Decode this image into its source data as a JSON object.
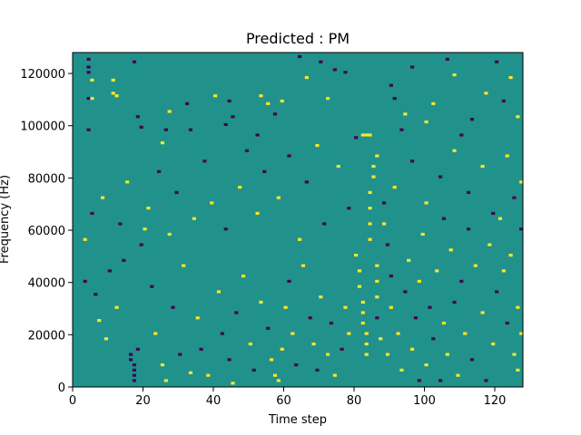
{
  "chart_data": {
    "type": "heatmap",
    "title": "Predicted : PM",
    "xlabel": "Time step",
    "ylabel": "Frequency (Hz)",
    "xlim": [
      0,
      128
    ],
    "ylim": [
      0,
      128000
    ],
    "xticks": [
      0,
      20,
      40,
      60,
      80,
      100,
      120
    ],
    "yticks": [
      0,
      20000,
      40000,
      60000,
      80000,
      100000,
      120000
    ],
    "xtick_labels": [
      "0",
      "20",
      "40",
      "60",
      "80",
      "100",
      "120"
    ],
    "ytick_labels": [
      "0",
      "20000",
      "40000",
      "60000",
      "80000",
      "100000",
      "120000"
    ],
    "grid": false,
    "n_time": 128,
    "n_freq": 128,
    "levels": [
      -1,
      0,
      1
    ],
    "colors": {
      "low": "#440154",
      "mid": "#21918c",
      "high": "#fde725"
    },
    "cells": [
      [
        4,
        98,
        -1
      ],
      [
        4,
        110,
        -1
      ],
      [
        4,
        120,
        -1
      ],
      [
        4,
        122,
        -1
      ],
      [
        4,
        125,
        -1
      ],
      [
        5,
        110,
        1
      ],
      [
        5,
        117,
        1
      ],
      [
        11,
        112,
        1
      ],
      [
        11,
        117,
        1
      ],
      [
        12,
        111,
        1
      ],
      [
        17,
        124,
        -1
      ],
      [
        18,
        103,
        -1
      ],
      [
        19,
        99,
        -1
      ],
      [
        25,
        93,
        1
      ],
      [
        26,
        98,
        -1
      ],
      [
        27,
        105,
        1
      ],
      [
        32,
        108,
        -1
      ],
      [
        33,
        98,
        -1
      ],
      [
        40,
        111,
        1
      ],
      [
        43,
        100,
        -1
      ],
      [
        44,
        109,
        -1
      ],
      [
        45,
        103,
        -1
      ],
      [
        52,
        96,
        -1
      ],
      [
        53,
        111,
        1
      ],
      [
        55,
        108,
        1
      ],
      [
        57,
        104,
        -1
      ],
      [
        59,
        109,
        1
      ],
      [
        64,
        126,
        -1
      ],
      [
        66,
        118,
        1
      ],
      [
        70,
        124,
        -1
      ],
      [
        72,
        110,
        1
      ],
      [
        74,
        121,
        -1
      ],
      [
        77,
        120,
        -1
      ],
      [
        80,
        95,
        -1
      ],
      [
        82,
        96,
        1
      ],
      [
        83,
        96,
        1
      ],
      [
        84,
        96,
        1
      ],
      [
        90,
        115,
        -1
      ],
      [
        91,
        110,
        -1
      ],
      [
        93,
        98,
        -1
      ],
      [
        94,
        104,
        1
      ],
      [
        96,
        122,
        -1
      ],
      [
        100,
        101,
        1
      ],
      [
        102,
        108,
        1
      ],
      [
        106,
        125,
        -1
      ],
      [
        108,
        119,
        1
      ],
      [
        110,
        96,
        -1
      ],
      [
        113,
        102,
        -1
      ],
      [
        117,
        112,
        1
      ],
      [
        120,
        124,
        -1
      ],
      [
        122,
        109,
        -1
      ],
      [
        124,
        118,
        1
      ],
      [
        126,
        103,
        1
      ],
      [
        3,
        40,
        -1
      ],
      [
        6,
        35,
        -1
      ],
      [
        7,
        25,
        1
      ],
      [
        9,
        18,
        1
      ],
      [
        10,
        44,
        -1
      ],
      [
        12,
        30,
        1
      ],
      [
        14,
        48,
        -1
      ],
      [
        16,
        12,
        -1
      ],
      [
        16,
        10,
        -1
      ],
      [
        17,
        8,
        -1
      ],
      [
        17,
        6,
        -1
      ],
      [
        17,
        4,
        -1
      ],
      [
        17,
        2,
        -1
      ],
      [
        18,
        14,
        -1
      ],
      [
        20,
        60,
        1
      ],
      [
        22,
        38,
        -1
      ],
      [
        23,
        20,
        1
      ],
      [
        25,
        8,
        1
      ],
      [
        26,
        2,
        1
      ],
      [
        28,
        30,
        -1
      ],
      [
        30,
        12,
        -1
      ],
      [
        31,
        46,
        1
      ],
      [
        33,
        5,
        1
      ],
      [
        35,
        26,
        1
      ],
      [
        36,
        14,
        -1
      ],
      [
        38,
        4,
        1
      ],
      [
        41,
        36,
        1
      ],
      [
        42,
        20,
        -1
      ],
      [
        44,
        10,
        -1
      ],
      [
        45,
        1,
        1
      ],
      [
        46,
        28,
        -1
      ],
      [
        48,
        42,
        1
      ],
      [
        50,
        16,
        1
      ],
      [
        51,
        6,
        -1
      ],
      [
        53,
        32,
        1
      ],
      [
        55,
        22,
        -1
      ],
      [
        56,
        10,
        1
      ],
      [
        57,
        4,
        1
      ],
      [
        58,
        2,
        1
      ],
      [
        59,
        14,
        1
      ],
      [
        60,
        30,
        1
      ],
      [
        61,
        40,
        -1
      ],
      [
        62,
        20,
        1
      ],
      [
        63,
        8,
        -1
      ],
      [
        65,
        46,
        1
      ],
      [
        67,
        26,
        -1
      ],
      [
        68,
        16,
        1
      ],
      [
        69,
        6,
        -1
      ],
      [
        70,
        34,
        1
      ],
      [
        72,
        12,
        1
      ],
      [
        73,
        24,
        -1
      ],
      [
        74,
        4,
        1
      ],
      [
        76,
        14,
        -1
      ],
      [
        77,
        30,
        1
      ],
      [
        78,
        20,
        1
      ],
      [
        80,
        50,
        1
      ],
      [
        81,
        44,
        1
      ],
      [
        81,
        38,
        1
      ],
      [
        82,
        32,
        1
      ],
      [
        82,
        28,
        1
      ],
      [
        82,
        24,
        1
      ],
      [
        83,
        20,
        1
      ],
      [
        83,
        16,
        1
      ],
      [
        83,
        12,
        1
      ],
      [
        84,
        56,
        1
      ],
      [
        84,
        62,
        1
      ],
      [
        84,
        68,
        1
      ],
      [
        84,
        74,
        1
      ],
      [
        85,
        80,
        1
      ],
      [
        85,
        84,
        1
      ],
      [
        86,
        88,
        1
      ],
      [
        86,
        46,
        1
      ],
      [
        86,
        40,
        1
      ],
      [
        86,
        34,
        1
      ],
      [
        86,
        26,
        -1
      ],
      [
        87,
        18,
        1
      ],
      [
        88,
        70,
        -1
      ],
      [
        88,
        62,
        1
      ],
      [
        89,
        54,
        -1
      ],
      [
        89,
        12,
        1
      ],
      [
        90,
        42,
        -1
      ],
      [
        90,
        30,
        1
      ],
      [
        92,
        20,
        1
      ],
      [
        93,
        6,
        1
      ],
      [
        94,
        36,
        -1
      ],
      [
        95,
        48,
        1
      ],
      [
        96,
        14,
        1
      ],
      [
        97,
        26,
        -1
      ],
      [
        98,
        2,
        -1
      ],
      [
        98,
        40,
        1
      ],
      [
        99,
        58,
        1
      ],
      [
        100,
        8,
        1
      ],
      [
        101,
        30,
        -1
      ],
      [
        102,
        18,
        -1
      ],
      [
        103,
        44,
        1
      ],
      [
        104,
        2,
        -1
      ],
      [
        105,
        64,
        -1
      ],
      [
        105,
        24,
        1
      ],
      [
        106,
        12,
        1
      ],
      [
        107,
        52,
        1
      ],
      [
        108,
        32,
        -1
      ],
      [
        109,
        4,
        1
      ],
      [
        110,
        40,
        -1
      ],
      [
        111,
        20,
        1
      ],
      [
        112,
        60,
        -1
      ],
      [
        113,
        10,
        -1
      ],
      [
        114,
        46,
        1
      ],
      [
        116,
        28,
        1
      ],
      [
        117,
        2,
        -1
      ],
      [
        118,
        54,
        1
      ],
      [
        119,
        16,
        1
      ],
      [
        120,
        36,
        -1
      ],
      [
        121,
        64,
        1
      ],
      [
        122,
        44,
        1
      ],
      [
        123,
        24,
        -1
      ],
      [
        124,
        50,
        1
      ],
      [
        125,
        12,
        1
      ],
      [
        126,
        30,
        1
      ],
      [
        127,
        60,
        -1
      ],
      [
        126,
        6,
        1
      ],
      [
        127,
        20,
        1
      ],
      [
        3,
        56,
        1
      ],
      [
        5,
        66,
        -1
      ],
      [
        8,
        72,
        1
      ],
      [
        13,
        62,
        -1
      ],
      [
        15,
        78,
        1
      ],
      [
        19,
        54,
        -1
      ],
      [
        21,
        68,
        1
      ],
      [
        24,
        82,
        -1
      ],
      [
        27,
        58,
        1
      ],
      [
        29,
        74,
        -1
      ],
      [
        34,
        64,
        1
      ],
      [
        37,
        86,
        -1
      ],
      [
        39,
        70,
        1
      ],
      [
        43,
        60,
        -1
      ],
      [
        47,
        76,
        1
      ],
      [
        49,
        90,
        -1
      ],
      [
        52,
        66,
        1
      ],
      [
        54,
        82,
        -1
      ],
      [
        58,
        72,
        1
      ],
      [
        61,
        88,
        -1
      ],
      [
        64,
        56,
        1
      ],
      [
        66,
        78,
        -1
      ],
      [
        69,
        92,
        1
      ],
      [
        71,
        62,
        -1
      ],
      [
        75,
        84,
        1
      ],
      [
        78,
        68,
        -1
      ],
      [
        91,
        76,
        1
      ],
      [
        96,
        86,
        -1
      ],
      [
        100,
        70,
        1
      ],
      [
        104,
        80,
        -1
      ],
      [
        108,
        90,
        1
      ],
      [
        112,
        74,
        -1
      ],
      [
        116,
        84,
        1
      ],
      [
        119,
        66,
        -1
      ],
      [
        123,
        88,
        1
      ],
      [
        125,
        72,
        -1
      ],
      [
        127,
        78,
        1
      ]
    ]
  }
}
